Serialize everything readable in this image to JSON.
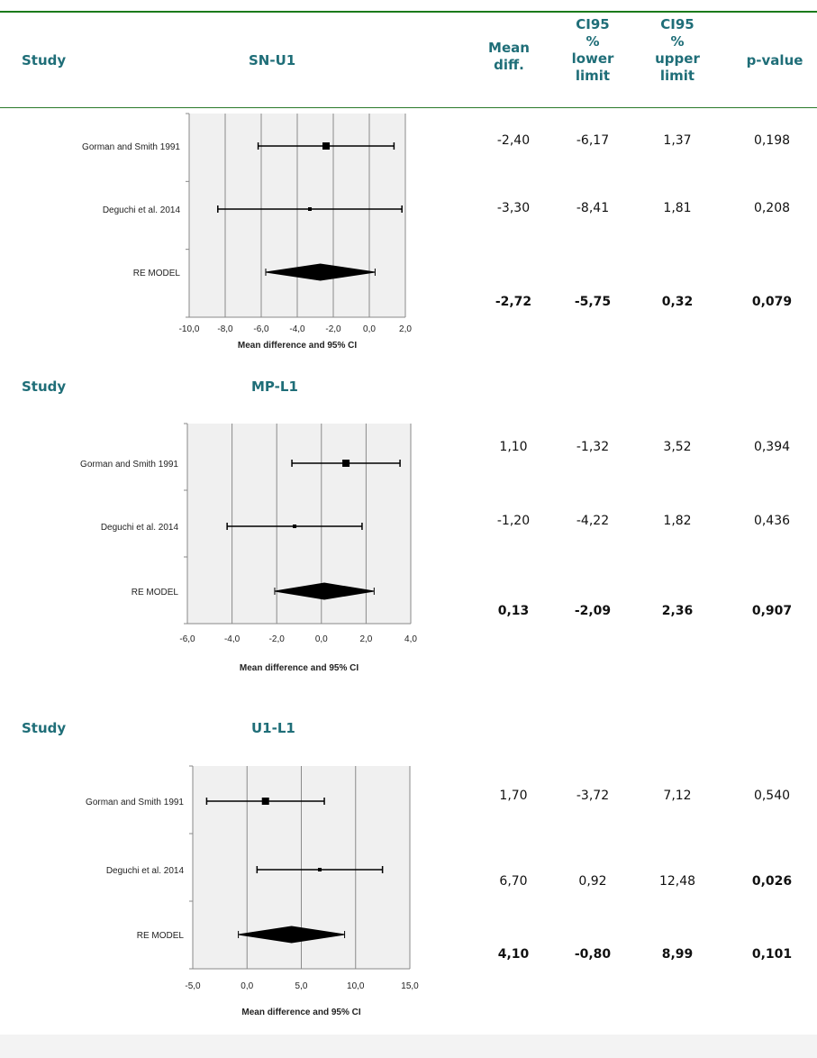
{
  "header": {
    "study": "Study",
    "first_title": "SN-U1",
    "mean_diff": [
      "Mean",
      "diff."
    ],
    "ci_lower": [
      "CI95",
      "%",
      "lower",
      "limit"
    ],
    "ci_upper": [
      "CI95",
      "%",
      "upper",
      "limit"
    ],
    "pvalue": "p-value"
  },
  "sections": [
    {
      "study_label": "Study",
      "title": "SN-U1",
      "rows": [
        {
          "mean": "-2,40",
          "lower": "-6,17",
          "upper": "1,37",
          "p": "0,198",
          "bold_p": false
        },
        {
          "mean": "-3,30",
          "lower": "-8,41",
          "upper": "1,81",
          "p": "0,208",
          "bold_p": false
        },
        {
          "mean": "-2,72",
          "lower": "-5,75",
          "upper": "0,32",
          "p": "0,079",
          "bold_p": true
        }
      ]
    },
    {
      "study_label": "Study",
      "title": "MP-L1",
      "rows": [
        {
          "mean": "1,10",
          "lower": "-1,32",
          "upper": "3,52",
          "p": "0,394",
          "bold_p": false
        },
        {
          "mean": "-1,20",
          "lower": "-4,22",
          "upper": "1,82",
          "p": "0,436",
          "bold_p": false
        },
        {
          "mean": "0,13",
          "lower": "-2,09",
          "upper": "2,36",
          "p": "0,907",
          "bold_p": true
        }
      ]
    },
    {
      "study_label": "Study",
      "title": "U1-L1",
      "rows": [
        {
          "mean": "1,70",
          "lower": "-3,72",
          "upper": "7,12",
          "p": "0,540",
          "bold_p": false
        },
        {
          "mean": "6,70",
          "lower": "0,92",
          "upper": "12,48",
          "p": "0,026",
          "bold_p": true
        },
        {
          "mean": "4,10",
          "lower": "-0,80",
          "upper": "8,99",
          "p": "0,101",
          "bold_p": true
        }
      ]
    }
  ],
  "chart_data": [
    {
      "type": "forest",
      "xlabel": "Mean difference and 95% CI",
      "xlim": [
        -10,
        2
      ],
      "ticks": [
        "-10,0",
        "-8,0",
        "-6,0",
        "-4,0",
        "-2,0",
        "0,0",
        "2,0"
      ],
      "tick_values": [
        -10,
        -8,
        -6,
        -4,
        -2,
        0,
        2
      ],
      "studies": [
        {
          "name": "Gorman and Smith 1991",
          "mean": -2.4,
          "lower": -6.17,
          "upper": 1.37,
          "weight": "large"
        },
        {
          "name": "Deguchi et al. 2014",
          "mean": -3.3,
          "lower": -8.41,
          "upper": 1.81,
          "weight": "small"
        }
      ],
      "pooled": {
        "name": "RE MODEL",
        "mean": -2.72,
        "lower": -5.75,
        "upper": 0.32
      }
    },
    {
      "type": "forest",
      "xlabel": "Mean difference and 95% CI",
      "xlim": [
        -6,
        4
      ],
      "ticks": [
        "-6,0",
        "-4,0",
        "-2,0",
        "0,0",
        "2,0",
        "4,0"
      ],
      "tick_values": [
        -6,
        -4,
        -2,
        0,
        2,
        4
      ],
      "studies": [
        {
          "name": "Gorman and Smith 1991",
          "mean": 1.1,
          "lower": -1.32,
          "upper": 3.52,
          "weight": "large"
        },
        {
          "name": "Deguchi et al. 2014",
          "mean": -1.2,
          "lower": -4.22,
          "upper": 1.82,
          "weight": "small"
        }
      ],
      "pooled": {
        "name": "RE MODEL",
        "mean": 0.13,
        "lower": -2.09,
        "upper": 2.36
      }
    },
    {
      "type": "forest",
      "xlabel": "Mean difference and 95% CI",
      "xlim": [
        -5,
        15
      ],
      "ticks": [
        "-5,0",
        "0,0",
        "5,0",
        "10,0",
        "15,0"
      ],
      "tick_values": [
        -5,
        0,
        5,
        10,
        15
      ],
      "studies": [
        {
          "name": "Gorman and Smith 1991",
          "mean": 1.7,
          "lower": -3.72,
          "upper": 7.12,
          "weight": "large"
        },
        {
          "name": "Deguchi et al. 2014",
          "mean": 6.7,
          "lower": 0.92,
          "upper": 12.48,
          "weight": "small"
        }
      ],
      "pooled": {
        "name": "RE MODEL",
        "mean": 4.1,
        "lower": -0.8,
        "upper": 8.99
      }
    }
  ],
  "colors": {
    "accent": "#1f6e78",
    "rule": "#1a7a1a",
    "panel": "#f0f0f0"
  }
}
